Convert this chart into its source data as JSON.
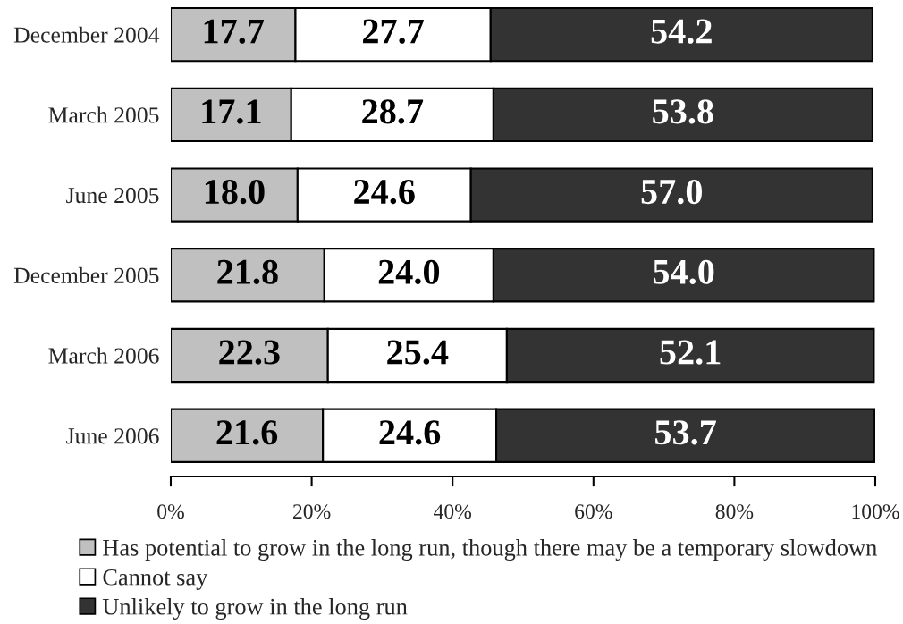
{
  "chart_data": {
    "type": "bar",
    "orientation": "horizontal",
    "stacked": true,
    "categories": [
      "December 2004",
      "March 2005",
      "June 2005",
      "December 2005",
      "March 2006",
      "June 2006"
    ],
    "series": [
      {
        "name": "Has potential to grow in the long run, though there may be a temporary slowdown",
        "color": "#c0c0c0",
        "values": [
          17.7,
          17.1,
          18.0,
          21.8,
          22.3,
          21.6
        ],
        "value_labels": [
          "17.7",
          "17.1",
          "18.0",
          "21.8",
          "22.3",
          "21.6"
        ]
      },
      {
        "name": "Cannot say",
        "color": "#ffffff",
        "values": [
          27.7,
          28.7,
          24.6,
          24.0,
          25.4,
          24.6
        ],
        "value_labels": [
          "27.7",
          "28.7",
          "24.6",
          "24.0",
          "25.4",
          "24.6"
        ]
      },
      {
        "name": "Unlikely to grow in the long run",
        "color": "#333333",
        "values": [
          54.2,
          53.8,
          57.0,
          54.0,
          52.1,
          53.7
        ],
        "value_labels": [
          "54.2",
          "53.8",
          "57.0",
          "54.0",
          "52.1",
          "53.7"
        ]
      }
    ],
    "xlim": [
      0,
      100
    ],
    "xticks": [
      {
        "value": 0,
        "label": "0%"
      },
      {
        "value": 20,
        "label": "20%"
      },
      {
        "value": 40,
        "label": "40%"
      },
      {
        "value": 60,
        "label": "60%"
      },
      {
        "value": 80,
        "label": "80%"
      },
      {
        "value": 100,
        "label": "100%"
      }
    ],
    "legend": "bottom"
  }
}
